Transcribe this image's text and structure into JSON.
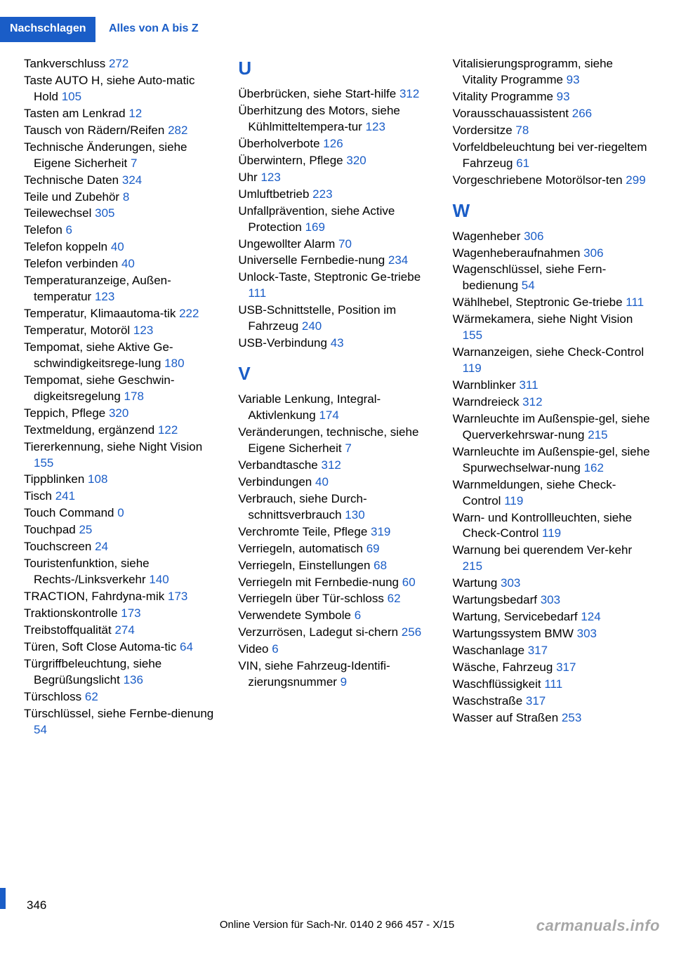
{
  "header": {
    "tab": "Nachschlagen",
    "sub": "Alles von A bis Z"
  },
  "footer": {
    "pageNum": "346",
    "line": "Online Version für Sach-Nr. 0140 2 966 457 - X/15",
    "watermark": "carmanuals.info"
  },
  "colors": {
    "accent": "#1a5dc7",
    "text": "#000000",
    "bg": "#ffffff"
  },
  "col1": [
    {
      "t": "Tankverschluss ",
      "p": "272"
    },
    {
      "t": "Taste AUTO H, siehe Auto‐matic Hold ",
      "p": "105"
    },
    {
      "t": "Tasten am Lenkrad ",
      "p": "12"
    },
    {
      "t": "Tausch von Rädern/Reifen ",
      "p": "282"
    },
    {
      "t": "Technische Änderungen, siehe Eigene Sicherheit ",
      "p": "7"
    },
    {
      "t": "Technische Daten ",
      "p": "324"
    },
    {
      "t": "Teile und Zubehör ",
      "p": "8"
    },
    {
      "t": "Teilewechsel ",
      "p": "305"
    },
    {
      "t": "Telefon ",
      "p": "6"
    },
    {
      "t": "Telefon koppeln ",
      "p": "40"
    },
    {
      "t": "Telefon verbinden ",
      "p": "40"
    },
    {
      "t": "Temperaturanzeige, Außen‐temperatur ",
      "p": "123"
    },
    {
      "t": "Temperatur, Klimaautoma‐tik ",
      "p": "222"
    },
    {
      "t": "Temperatur, Motoröl ",
      "p": "123"
    },
    {
      "t": "Tempomat, siehe Aktive Ge‐schwindigkeitsrege‐lung ",
      "p": "180"
    },
    {
      "t": "Tempomat, siehe Geschwin‐digkeitsregelung ",
      "p": "178"
    },
    {
      "t": "Teppich, Pflege ",
      "p": "320"
    },
    {
      "t": "Textmeldung, ergänzend ",
      "p": "122"
    },
    {
      "t": "Tiererkennung, siehe Night Vision ",
      "p": "155"
    },
    {
      "t": "Tippblinken ",
      "p": "108"
    },
    {
      "t": "Tisch ",
      "p": "241"
    },
    {
      "t": "Touch Command  ",
      "p": "0"
    },
    {
      "t": "Touchpad ",
      "p": "25"
    },
    {
      "t": "Touchscreen ",
      "p": "24"
    },
    {
      "t": "Touristenfunktion, siehe Rechts-/Linksverkehr ",
      "p": "140"
    },
    {
      "t": "TRACTION, Fahrdyna‐mik ",
      "p": "173"
    },
    {
      "t": "Traktionskontrolle ",
      "p": "173"
    },
    {
      "t": "Treibstoffqualität ",
      "p": "274"
    },
    {
      "t": "Türen, Soft Close Automa‐tic ",
      "p": "64"
    },
    {
      "t": "Türgriffbeleuchtung, siehe Begrüßungslicht ",
      "p": "136"
    },
    {
      "t": "Türschloss ",
      "p": "62"
    },
    {
      "t": "Türschlüssel, siehe Fernbe‐dienung ",
      "p": "54"
    }
  ],
  "col2": [
    {
      "letter": "U"
    },
    {
      "t": "Überbrücken, siehe Start‐hilfe ",
      "p": "312"
    },
    {
      "t": "Überhitzung des Motors, siehe Kühlmitteltempera‐tur ",
      "p": "123"
    },
    {
      "t": "Überholverbote ",
      "p": "126"
    },
    {
      "t": "Überwintern, Pflege ",
      "p": "320"
    },
    {
      "t": "Uhr ",
      "p": "123"
    },
    {
      "t": "Umluftbetrieb ",
      "p": "223"
    },
    {
      "t": "Unfallprävention, siehe Active Protection ",
      "p": "169"
    },
    {
      "t": "Ungewollter Alarm ",
      "p": "70"
    },
    {
      "t": "Universelle Fernbedie‐nung ",
      "p": "234"
    },
    {
      "t": "Unlock-Taste, Steptronic Ge‐triebe ",
      "p": "111"
    },
    {
      "t": "USB-Schnittstelle, Position im Fahrzeug ",
      "p": "240"
    },
    {
      "t": "USB-Verbindung ",
      "p": "43"
    },
    {
      "letter": "V"
    },
    {
      "t": "Variable Lenkung, Integral-Aktivlenkung ",
      "p": "174"
    },
    {
      "t": "Veränderungen, technische, siehe Eigene Sicherheit ",
      "p": "7"
    },
    {
      "t": "Verbandtasche ",
      "p": "312"
    },
    {
      "t": "Verbindungen ",
      "p": "40"
    },
    {
      "t": "Verbrauch, siehe Durch‐schnittsverbrauch ",
      "p": "130"
    },
    {
      "t": "Verchromte Teile, Pflege ",
      "p": "319"
    },
    {
      "t": "Verriegeln, automatisch ",
      "p": "69"
    },
    {
      "t": "Verriegeln, Einstellungen ",
      "p": "68"
    },
    {
      "t": "Verriegeln mit Fernbedie‐nung ",
      "p": "60"
    },
    {
      "t": "Verriegeln über Tür‐schloss ",
      "p": "62"
    },
    {
      "t": "Verwendete Symbole ",
      "p": "6"
    },
    {
      "t": "Verzurrösen, Ladegut si‐chern ",
      "p": "256"
    },
    {
      "t": "Video ",
      "p": "6"
    },
    {
      "t": "VIN, siehe Fahrzeug-Identifi‐zierungsnummer ",
      "p": "9"
    }
  ],
  "col3": [
    {
      "t": "Vitalisierungsprogramm, siehe Vitality Programme ",
      "p": "93"
    },
    {
      "t": "Vitality Programme ",
      "p": "93"
    },
    {
      "t": "Vorausschauassistent ",
      "p": "266"
    },
    {
      "t": "Vordersitze ",
      "p": "78"
    },
    {
      "t": "Vorfeldbeleuchtung bei ver‐riegeltem Fahrzeug ",
      "p": "61"
    },
    {
      "t": "Vorgeschriebene Motorölsor‐ten ",
      "p": "299"
    },
    {
      "letter": "W"
    },
    {
      "t": "Wagenheber ",
      "p": "306"
    },
    {
      "t": "Wagenheberaufnahmen ",
      "p": "306"
    },
    {
      "t": "Wagenschlüssel, siehe Fern‐bedienung ",
      "p": "54"
    },
    {
      "t": "Wählhebel, Steptronic Ge‐triebe ",
      "p": "111"
    },
    {
      "t": "Wärmekamera, siehe Night Vision ",
      "p": "155"
    },
    {
      "t": "Warnanzeigen, siehe Check-Control ",
      "p": "119"
    },
    {
      "t": "Warnblinker ",
      "p": "311"
    },
    {
      "t": "Warndreieck ",
      "p": "312"
    },
    {
      "t": "Warnleuchte im Außenspie‐gel, siehe Querverkehrswar‐nung ",
      "p": "215"
    },
    {
      "t": "Warnleuchte im Außenspie‐gel, siehe Spurwechselwar‐nung ",
      "p": "162"
    },
    {
      "t": "Warnmeldungen, siehe Check-Control ",
      "p": "119"
    },
    {
      "t": "Warn- und Kontrollleuchten, siehe Check-Control ",
      "p": "119"
    },
    {
      "t": "Warnung bei querendem Ver‐kehr ",
      "p": "215"
    },
    {
      "t": "Wartung ",
      "p": "303"
    },
    {
      "t": "Wartungsbedarf ",
      "p": "303"
    },
    {
      "t": "Wartung, Servicebedarf ",
      "p": "124"
    },
    {
      "t": "Wartungssystem BMW ",
      "p": "303"
    },
    {
      "t": "Waschanlage ",
      "p": "317"
    },
    {
      "t": "Wäsche, Fahrzeug ",
      "p": "317"
    },
    {
      "t": "Waschflüssigkeit ",
      "p": "111"
    },
    {
      "t": "Waschstraße ",
      "p": "317"
    },
    {
      "t": "Wasser auf Straßen ",
      "p": "253"
    }
  ]
}
